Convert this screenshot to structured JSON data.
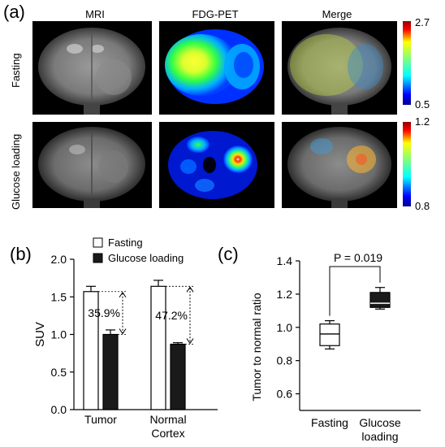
{
  "panel_a": {
    "label": "(a)",
    "columns": [
      "MRI",
      "FDG-PET",
      "Merge"
    ],
    "rows": [
      "Fasting",
      "Glucose loading"
    ],
    "colorbars": [
      {
        "max": "2.7",
        "min": "0.5"
      },
      {
        "max": "1.2",
        "min": "0.8"
      }
    ]
  },
  "panel_b": {
    "label": "(b)"
  },
  "panel_c": {
    "label": "(c)"
  },
  "chart_data": [
    {
      "type": "bar",
      "ylabel": "SUV",
      "ylim": [
        0,
        2.0
      ],
      "yticks": [
        "0.0",
        "0.5",
        "1.0",
        "1.5",
        "2.0"
      ],
      "categories": [
        "Tumor",
        "Normal\nCortex"
      ],
      "category_lines": [
        [
          "Tumor"
        ],
        [
          "Normal",
          "Cortex"
        ]
      ],
      "series": [
        {
          "name": "Fasting",
          "color": "#ffffff",
          "values": [
            1.57,
            1.64
          ],
          "errors": [
            0.07,
            0.08
          ]
        },
        {
          "name": "Glucose loading",
          "color": "#1a1a1a",
          "values": [
            1.0,
            0.87
          ],
          "errors": [
            0.06,
            0.02
          ]
        }
      ],
      "annotations": [
        "35.9%",
        "47.2%"
      ],
      "legend": "top"
    },
    {
      "type": "box",
      "ylabel": "Tumor to normal ratio",
      "ylim": [
        0.5,
        1.4
      ],
      "yticks": [
        "0.6",
        "0.8",
        "1.0",
        "1.2",
        "1.4"
      ],
      "categories": [
        [
          "Fasting"
        ],
        [
          "Glucose",
          "loading"
        ]
      ],
      "boxes": [
        {
          "min": 0.87,
          "q1": 0.89,
          "median": 0.96,
          "q3": 1.02,
          "max": 1.04,
          "fill": "#ffffff"
        },
        {
          "min": 1.11,
          "q1": 1.12,
          "median": 1.145,
          "q3": 1.21,
          "max": 1.24,
          "fill": "#1a1a1a"
        }
      ],
      "annotation": "P = 0.019"
    }
  ]
}
